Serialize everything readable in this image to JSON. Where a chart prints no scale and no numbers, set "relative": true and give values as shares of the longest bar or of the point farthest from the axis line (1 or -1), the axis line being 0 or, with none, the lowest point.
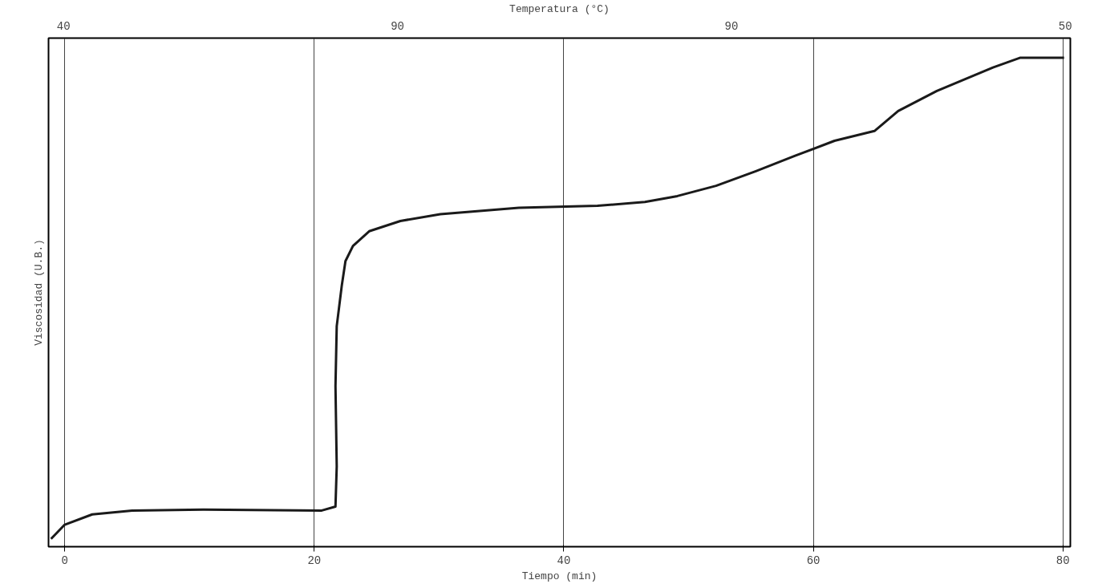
{
  "chart_data": {
    "type": "line",
    "relative": true,
    "xlabel": "Tiempo (min)",
    "ylabel": "Viscosidad (U.B.)",
    "x2label": "Temperatura (°C)",
    "xlim": [
      -1.3,
      80.6
    ],
    "xticks": [
      0,
      20,
      40,
      60,
      80
    ],
    "annotations": [
      "40",
      "90",
      "90",
      "50"
    ],
    "grid": "x",
    "line_style": "solid",
    "marker": "none",
    "series": [
      {
        "color": "#1a1a1a",
        "x": [
          -1.1,
          0,
          2.2,
          5.4,
          11.1,
          20.6,
          21.7,
          21.8,
          21.7,
          21.8,
          22.2,
          22.5,
          23.1,
          24.4,
          26.9,
          30.1,
          36.4,
          42.7,
          46.5,
          49.1,
          52.2,
          55.4,
          58.5,
          61.7,
          64.9,
          66.8,
          69.9,
          74.4,
          76.6,
          80.1
        ],
        "values": [
          0.016,
          0.045,
          0.066,
          0.074,
          0.076,
          0.074,
          0.082,
          0.164,
          0.328,
          0.451,
          0.533,
          0.584,
          0.615,
          0.645,
          0.666,
          0.68,
          0.693,
          0.697,
          0.705,
          0.717,
          0.738,
          0.768,
          0.799,
          0.83,
          0.85,
          0.891,
          0.932,
          0.98,
          1,
          1
        ]
      }
    ]
  }
}
